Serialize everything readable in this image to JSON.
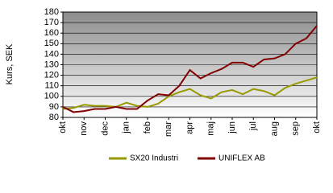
{
  "chart_data": {
    "type": "line",
    "ylabel": "Kurs, SEK",
    "x": [
      0,
      0.5,
      1,
      1.5,
      2,
      2.5,
      3,
      3.5,
      4,
      4.5,
      5,
      5.5,
      6,
      6.5,
      7,
      7.5,
      8,
      8.5,
      9,
      9.5,
      10,
      10.5,
      11,
      11.5,
      12
    ],
    "series": [
      {
        "name": "SX20 Industri",
        "color": "#999900",
        "values": [
          88,
          89,
          92,
          91,
          91,
          90,
          94,
          91,
          90,
          93,
          100,
          104,
          107,
          101,
          98,
          104,
          106,
          102,
          107,
          105,
          101,
          108,
          112,
          115,
          118
        ]
      },
      {
        "name": "UNIFLEX AB",
        "color": "#800000",
        "values": [
          90,
          85,
          86,
          88,
          88,
          90,
          88,
          88,
          96,
          102,
          101,
          110,
          125,
          117,
          122,
          126,
          132,
          132,
          128,
          135,
          136,
          140,
          150,
          155,
          167
        ]
      }
    ],
    "xlim": [
      0,
      12
    ],
    "xticks": [
      {
        "value": 0,
        "label": "okt"
      },
      {
        "value": 1,
        "label": "nov"
      },
      {
        "value": 2,
        "label": "dec"
      },
      {
        "value": 3,
        "label": "jan"
      },
      {
        "value": 4,
        "label": "feb"
      },
      {
        "value": 5,
        "label": "mar"
      },
      {
        "value": 6,
        "label": "apr"
      },
      {
        "value": 7,
        "label": "maj"
      },
      {
        "value": 8,
        "label": "jun"
      },
      {
        "value": 9,
        "label": "jul"
      },
      {
        "value": 10,
        "label": "aug"
      },
      {
        "value": 11,
        "label": "sep"
      },
      {
        "value": 12,
        "label": "okt"
      }
    ],
    "ylim": [
      80,
      180
    ],
    "yticks": [
      80,
      90,
      100,
      110,
      120,
      130,
      140,
      150,
      160,
      170,
      180
    ],
    "grid": true
  }
}
